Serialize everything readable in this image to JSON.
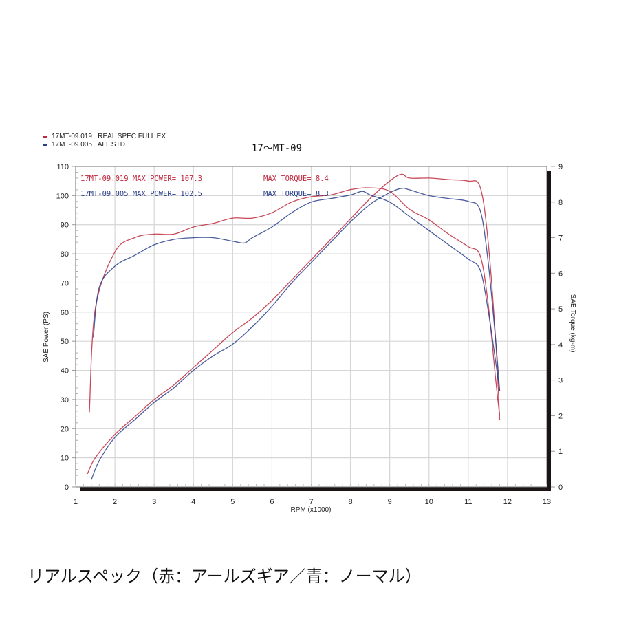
{
  "legend": {
    "items": [
      {
        "id": "17MT-09.019",
        "label": "17MT-09.019   REAL SPEC FULL EX",
        "color": "#c0283c"
      },
      {
        "id": "17MT-09.005",
        "label": "17MT-09.005   ALL STD",
        "color": "#2a3f8c"
      }
    ]
  },
  "title": "17～MT-09",
  "annotations": {
    "red_power": "17MT-09.019  MAX POWER= 107.3",
    "red_torque": "MAX TORQUE= 8.4",
    "blue_power": "17MT-09.005  MAX POWER= 102.5",
    "blue_torque": "MAX TORQUE= 8.3"
  },
  "axes": {
    "left_label": "SAE Power (PS)",
    "right_label": "SAE Torque (kg-m)",
    "x_label": "RPM (x1000)",
    "left_ticks": [
      "0",
      "10",
      "20",
      "30",
      "40",
      "50",
      "60",
      "70",
      "80",
      "90",
      "100",
      "110"
    ],
    "right_ticks": [
      "0",
      "1",
      "2",
      "3",
      "4",
      "5",
      "6",
      "7",
      "8",
      "9"
    ],
    "x_ticks": [
      "1",
      "2",
      "3",
      "4",
      "5",
      "6",
      "7",
      "8",
      "9",
      "10",
      "11",
      "12",
      "13"
    ]
  },
  "caption": "リアルスペック（赤：アールズギア／青：ノーマル）",
  "chart_data": {
    "type": "line",
    "title": "17～MT-09",
    "xlabel": "RPM (x1000)",
    "ylabel": "SAE Power (PS)",
    "y2label": "SAE Torque (kg-m)",
    "xlim": [
      1,
      13
    ],
    "ylim": [
      0,
      110
    ],
    "y2lim": [
      0,
      9
    ],
    "grid": true,
    "legend_position": "top-left outside",
    "series": [
      {
        "name": "17MT-09.019 REAL SPEC FULL EX — Power (PS)",
        "axis": "left",
        "color": "#c0283c",
        "x": [
          1.3,
          1.5,
          2.0,
          2.5,
          3.0,
          3.5,
          4.0,
          4.5,
          5.0,
          5.5,
          6.0,
          6.5,
          7.0,
          7.5,
          8.0,
          8.5,
          9.0,
          9.3,
          9.5,
          10.0,
          10.5,
          11.0,
          11.3,
          11.5,
          11.7,
          11.8
        ],
        "values": [
          4.5,
          10,
          18,
          24,
          30,
          35,
          41,
          47,
          53,
          58,
          64,
          71,
          78,
          85,
          92,
          99,
          105,
          107.3,
          106,
          106,
          105.5,
          105,
          103,
          85,
          50,
          23
        ]
      },
      {
        "name": "17MT-09.005 ALL STD — Power (PS)",
        "axis": "left",
        "color": "#2a3f8c",
        "x": [
          1.4,
          1.6,
          2.0,
          2.5,
          3.0,
          3.5,
          4.0,
          4.5,
          5.0,
          5.5,
          6.0,
          6.5,
          7.0,
          7.5,
          8.0,
          8.5,
          9.0,
          9.3,
          9.5,
          10.0,
          10.5,
          11.0,
          11.3,
          11.5,
          11.7,
          11.8
        ],
        "values": [
          2.5,
          9,
          17,
          23,
          29,
          34,
          40,
          45,
          49,
          55,
          62,
          70,
          77,
          84,
          91,
          97,
          101,
          102.5,
          102,
          100,
          99,
          98,
          95,
          78,
          50,
          33
        ]
      },
      {
        "name": "17MT-09.019 REAL SPEC FULL EX — Torque (kg-m)",
        "axis": "right",
        "color": "#c0283c",
        "x": [
          1.35,
          1.5,
          2.0,
          2.5,
          3.0,
          3.5,
          4.0,
          4.5,
          5.0,
          5.5,
          6.0,
          6.5,
          7.0,
          7.5,
          8.0,
          8.5,
          9.0,
          9.5,
          10.0,
          10.5,
          11.0,
          11.3,
          11.5,
          11.7,
          11.8
        ],
        "values": [
          2.1,
          5.0,
          6.6,
          7.0,
          7.1,
          7.1,
          7.3,
          7.4,
          7.55,
          7.55,
          7.7,
          8.0,
          8.15,
          8.2,
          8.35,
          8.4,
          8.3,
          7.8,
          7.5,
          7.1,
          6.75,
          6.5,
          5.2,
          3.0,
          2.0
        ],
        "max": 8.4
      },
      {
        "name": "17MT-09.005 ALL STD — Torque (kg-m)",
        "axis": "right",
        "color": "#2a3f8c",
        "x": [
          1.45,
          1.6,
          2.0,
          2.5,
          3.0,
          3.5,
          4.0,
          4.5,
          5.0,
          5.3,
          5.5,
          6.0,
          6.5,
          7.0,
          7.5,
          8.0,
          8.3,
          8.5,
          9.0,
          9.5,
          10.0,
          10.5,
          11.0,
          11.3,
          11.5,
          11.7,
          11.8
        ],
        "values": [
          4.2,
          5.6,
          6.2,
          6.5,
          6.8,
          6.95,
          7.0,
          7.0,
          6.9,
          6.85,
          7.0,
          7.3,
          7.7,
          8.0,
          8.1,
          8.2,
          8.3,
          8.2,
          8.0,
          7.6,
          7.2,
          6.8,
          6.4,
          6.1,
          5.0,
          3.5,
          2.7
        ],
        "max": 8.3
      }
    ]
  }
}
